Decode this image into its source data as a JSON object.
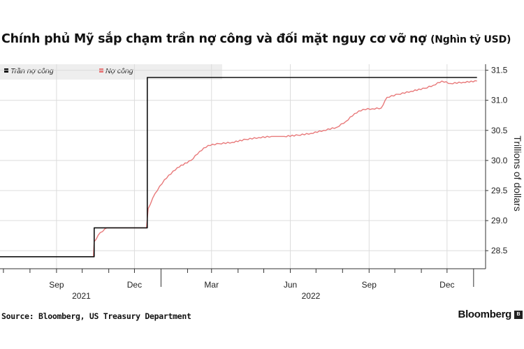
{
  "chart_data": {
    "type": "line",
    "title": "Chính phủ Mỹ sắp chạm trần nợ công và đối mặt nguy cơ vỡ nợ",
    "unit_label": "(Nghìn tỷ USD)",
    "ylabel": "Trillions of dollars",
    "ylim": [
      28.2,
      31.6
    ],
    "yticks": [
      28.5,
      29.0,
      29.5,
      30.0,
      30.5,
      31.0,
      31.5
    ],
    "ytick_labels": [
      "28.5",
      "29.0",
      "29.5",
      "30.0",
      "30.5",
      "31.0",
      "31.5"
    ],
    "xlim": [
      "2021-06-27",
      "2023-01-15"
    ],
    "xticks": [
      {
        "date": "2021-09-01",
        "label": "Sep"
      },
      {
        "date": "2021-12-01",
        "label": "Dec"
      },
      {
        "date": "2022-03-01",
        "label": "Mar"
      },
      {
        "date": "2022-06-01",
        "label": "Jun"
      },
      {
        "date": "2022-09-01",
        "label": "Sep"
      },
      {
        "date": "2022-12-01",
        "label": "Dec"
      }
    ],
    "year_labels": [
      {
        "date": "2021-09-30",
        "label": "2021"
      },
      {
        "date": "2022-06-25",
        "label": "2022"
      }
    ],
    "grid": true,
    "legend": "top-left",
    "series": [
      {
        "name": "Trần nợ công",
        "color": "#111111",
        "step": true,
        "points": [
          [
            "2021-06-27",
            28.4
          ],
          [
            "2021-10-14",
            28.4
          ],
          [
            "2021-10-15",
            28.88
          ],
          [
            "2021-12-15",
            28.88
          ],
          [
            "2021-12-16",
            31.38
          ],
          [
            "2023-01-05",
            31.38
          ]
        ]
      },
      {
        "name": "Nợ công",
        "color": "#e8797a",
        "step": false,
        "points": [
          [
            "2021-06-27",
            28.4
          ],
          [
            "2021-10-14",
            28.4
          ],
          [
            "2021-10-15",
            28.65
          ],
          [
            "2021-10-22",
            28.8
          ],
          [
            "2021-10-30",
            28.88
          ],
          [
            "2021-12-15",
            28.88
          ],
          [
            "2021-12-17",
            29.2
          ],
          [
            "2021-12-25",
            29.45
          ],
          [
            "2022-01-05",
            29.68
          ],
          [
            "2022-01-20",
            29.88
          ],
          [
            "2022-02-05",
            30.0
          ],
          [
            "2022-02-15",
            30.15
          ],
          [
            "2022-02-25",
            30.25
          ],
          [
            "2022-03-10",
            30.28
          ],
          [
            "2022-03-25",
            30.3
          ],
          [
            "2022-04-10",
            30.35
          ],
          [
            "2022-04-25",
            30.38
          ],
          [
            "2022-05-10",
            30.4
          ],
          [
            "2022-05-25",
            30.4
          ],
          [
            "2022-06-10",
            30.42
          ],
          [
            "2022-06-25",
            30.45
          ],
          [
            "2022-07-10",
            30.5
          ],
          [
            "2022-07-25",
            30.55
          ],
          [
            "2022-08-05",
            30.65
          ],
          [
            "2022-08-15",
            30.78
          ],
          [
            "2022-08-25",
            30.85
          ],
          [
            "2022-09-05",
            30.86
          ],
          [
            "2022-09-15",
            30.87
          ],
          [
            "2022-09-22",
            31.05
          ],
          [
            "2022-10-05",
            31.1
          ],
          [
            "2022-10-20",
            31.15
          ],
          [
            "2022-11-05",
            31.2
          ],
          [
            "2022-11-15",
            31.25
          ],
          [
            "2022-11-25",
            31.32
          ],
          [
            "2022-12-05",
            31.28
          ],
          [
            "2022-12-20",
            31.3
          ],
          [
            "2023-01-05",
            31.32
          ]
        ]
      }
    ]
  },
  "source": "Source: Bloomberg, US Treasury Department",
  "brand": "Bloomberg"
}
